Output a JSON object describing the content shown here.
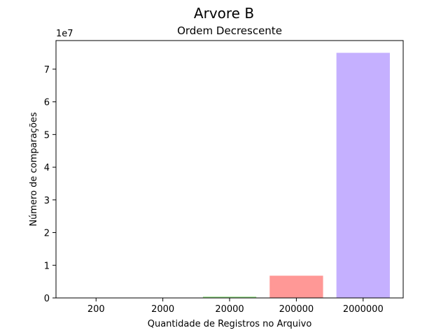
{
  "chart_data": {
    "type": "bar",
    "suptitle": "Arvore B",
    "title": "Ordem Decrescente",
    "xlabel": "Quantidade de Registros no Arquivo",
    "ylabel": "Número de comparações",
    "y_offset_label": "1e7",
    "categories": [
      "200",
      "2000",
      "20000",
      "200000",
      "2000000"
    ],
    "values": [
      200,
      2800,
      400000,
      6800000,
      75000000
    ],
    "colors": [
      "#aec7e8",
      "#ffbb78",
      "#98df8a",
      "#ff9896",
      "#c5b0ff"
    ],
    "ylim": [
      0,
      78750000
    ],
    "yticks": [
      0,
      10000000,
      20000000,
      30000000,
      40000000,
      50000000,
      60000000,
      70000000
    ],
    "ytick_labels": [
      "0",
      "1",
      "2",
      "3",
      "4",
      "5",
      "6",
      "7"
    ],
    "grid": false,
    "legend": "none"
  }
}
